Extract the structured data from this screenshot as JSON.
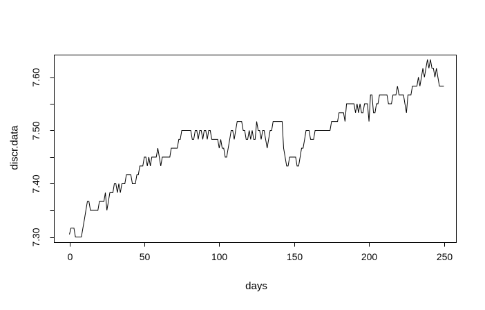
{
  "chart_data": {
    "type": "line",
    "title": "",
    "xlabel": "days",
    "ylabel": "discr.data",
    "series_name": "discr.data",
    "line_color": "#000000",
    "background_color": "#ffffff",
    "grid": false,
    "legend": null,
    "x_start": 0,
    "x_step": 1,
    "xlim": [
      -10,
      260
    ],
    "ylim": [
      7.289,
      7.645
    ],
    "x_ticks": [
      {
        "value": 0,
        "label": "0"
      },
      {
        "value": 50,
        "label": "50"
      },
      {
        "value": 100,
        "label": "100"
      },
      {
        "value": 150,
        "label": "150"
      },
      {
        "value": 200,
        "label": "200"
      },
      {
        "value": 250,
        "label": "250"
      }
    ],
    "y_minor_ticks": [
      7.3,
      7.35,
      7.4,
      7.45,
      7.5,
      7.55,
      7.6
    ],
    "y_ticks": [
      {
        "value": 7.3,
        "label": "7.30"
      },
      {
        "value": 7.4,
        "label": "7.40"
      },
      {
        "value": 7.5,
        "label": "7.50"
      },
      {
        "value": 7.6,
        "label": "7.60"
      }
    ],
    "values": [
      7.305,
      7.3167,
      7.3167,
      7.3167,
      7.3,
      7.3,
      7.3,
      7.3,
      7.3,
      7.3167,
      7.3333,
      7.35,
      7.3667,
      7.3667,
      7.35,
      7.35,
      7.35,
      7.35,
      7.35,
      7.35,
      7.3667,
      7.3667,
      7.3667,
      7.3667,
      7.3833,
      7.35,
      7.3667,
      7.3833,
      7.3833,
      7.3833,
      7.4,
      7.4,
      7.3833,
      7.4,
      7.3833,
      7.4,
      7.4,
      7.4,
      7.4167,
      7.4167,
      7.4167,
      7.4167,
      7.4,
      7.4,
      7.4,
      7.4167,
      7.4167,
      7.4333,
      7.4333,
      7.4333,
      7.45,
      7.45,
      7.4333,
      7.45,
      7.4333,
      7.45,
      7.45,
      7.45,
      7.45,
      7.4667,
      7.45,
      7.4333,
      7.45,
      7.45,
      7.45,
      7.45,
      7.45,
      7.45,
      7.4667,
      7.4667,
      7.4667,
      7.4667,
      7.4667,
      7.4833,
      7.4833,
      7.5,
      7.5,
      7.5,
      7.5,
      7.5,
      7.5,
      7.5,
      7.4833,
      7.4833,
      7.5,
      7.5,
      7.4833,
      7.5,
      7.5,
      7.4833,
      7.5,
      7.5,
      7.4833,
      7.5,
      7.5,
      7.4833,
      7.4833,
      7.4833,
      7.4833,
      7.4833,
      7.4667,
      7.4833,
      7.4667,
      7.4667,
      7.45,
      7.45,
      7.4667,
      7.4833,
      7.5,
      7.5,
      7.4833,
      7.5,
      7.5167,
      7.5167,
      7.5167,
      7.5167,
      7.5,
      7.5,
      7.4833,
      7.4833,
      7.5,
      7.4833,
      7.5,
      7.4833,
      7.4833,
      7.5167,
      7.5,
      7.5,
      7.4833,
      7.5,
      7.5,
      7.4833,
      7.4667,
      7.4833,
      7.5,
      7.5,
      7.5167,
      7.5167,
      7.5167,
      7.5167,
      7.5167,
      7.5167,
      7.5167,
      7.4667,
      7.45,
      7.4333,
      7.4333,
      7.45,
      7.45,
      7.45,
      7.45,
      7.45,
      7.4333,
      7.4333,
      7.45,
      7.4667,
      7.4667,
      7.4833,
      7.5,
      7.5,
      7.5,
      7.4833,
      7.4833,
      7.4833,
      7.5,
      7.5,
      7.5,
      7.5,
      7.5,
      7.5,
      7.5,
      7.5,
      7.5,
      7.5,
      7.5,
      7.5167,
      7.5167,
      7.5167,
      7.5167,
      7.5167,
      7.5333,
      7.5333,
      7.5333,
      7.5333,
      7.5167,
      7.55,
      7.55,
      7.55,
      7.55,
      7.55,
      7.55,
      7.5333,
      7.55,
      7.5333,
      7.55,
      7.5333,
      7.5333,
      7.55,
      7.55,
      7.55,
      7.5167,
      7.5667,
      7.5667,
      7.5333,
      7.5333,
      7.55,
      7.55,
      7.5667,
      7.5667,
      7.5667,
      7.5667,
      7.5667,
      7.5667,
      7.55,
      7.55,
      7.55,
      7.5667,
      7.5667,
      7.5667,
      7.5833,
      7.5667,
      7.5667,
      7.5667,
      7.5667,
      7.55,
      7.5333,
      7.5667,
      7.5667,
      7.5667,
      7.5833,
      7.5833,
      7.5833,
      7.5833,
      7.6,
      7.5833,
      7.6,
      7.6167,
      7.6,
      7.6167,
      7.6333,
      7.6167,
      7.6333,
      7.6167,
      7.6167,
      7.6,
      7.6167,
      7.6,
      7.5833,
      7.5833,
      7.5833,
      7.5833
    ]
  }
}
